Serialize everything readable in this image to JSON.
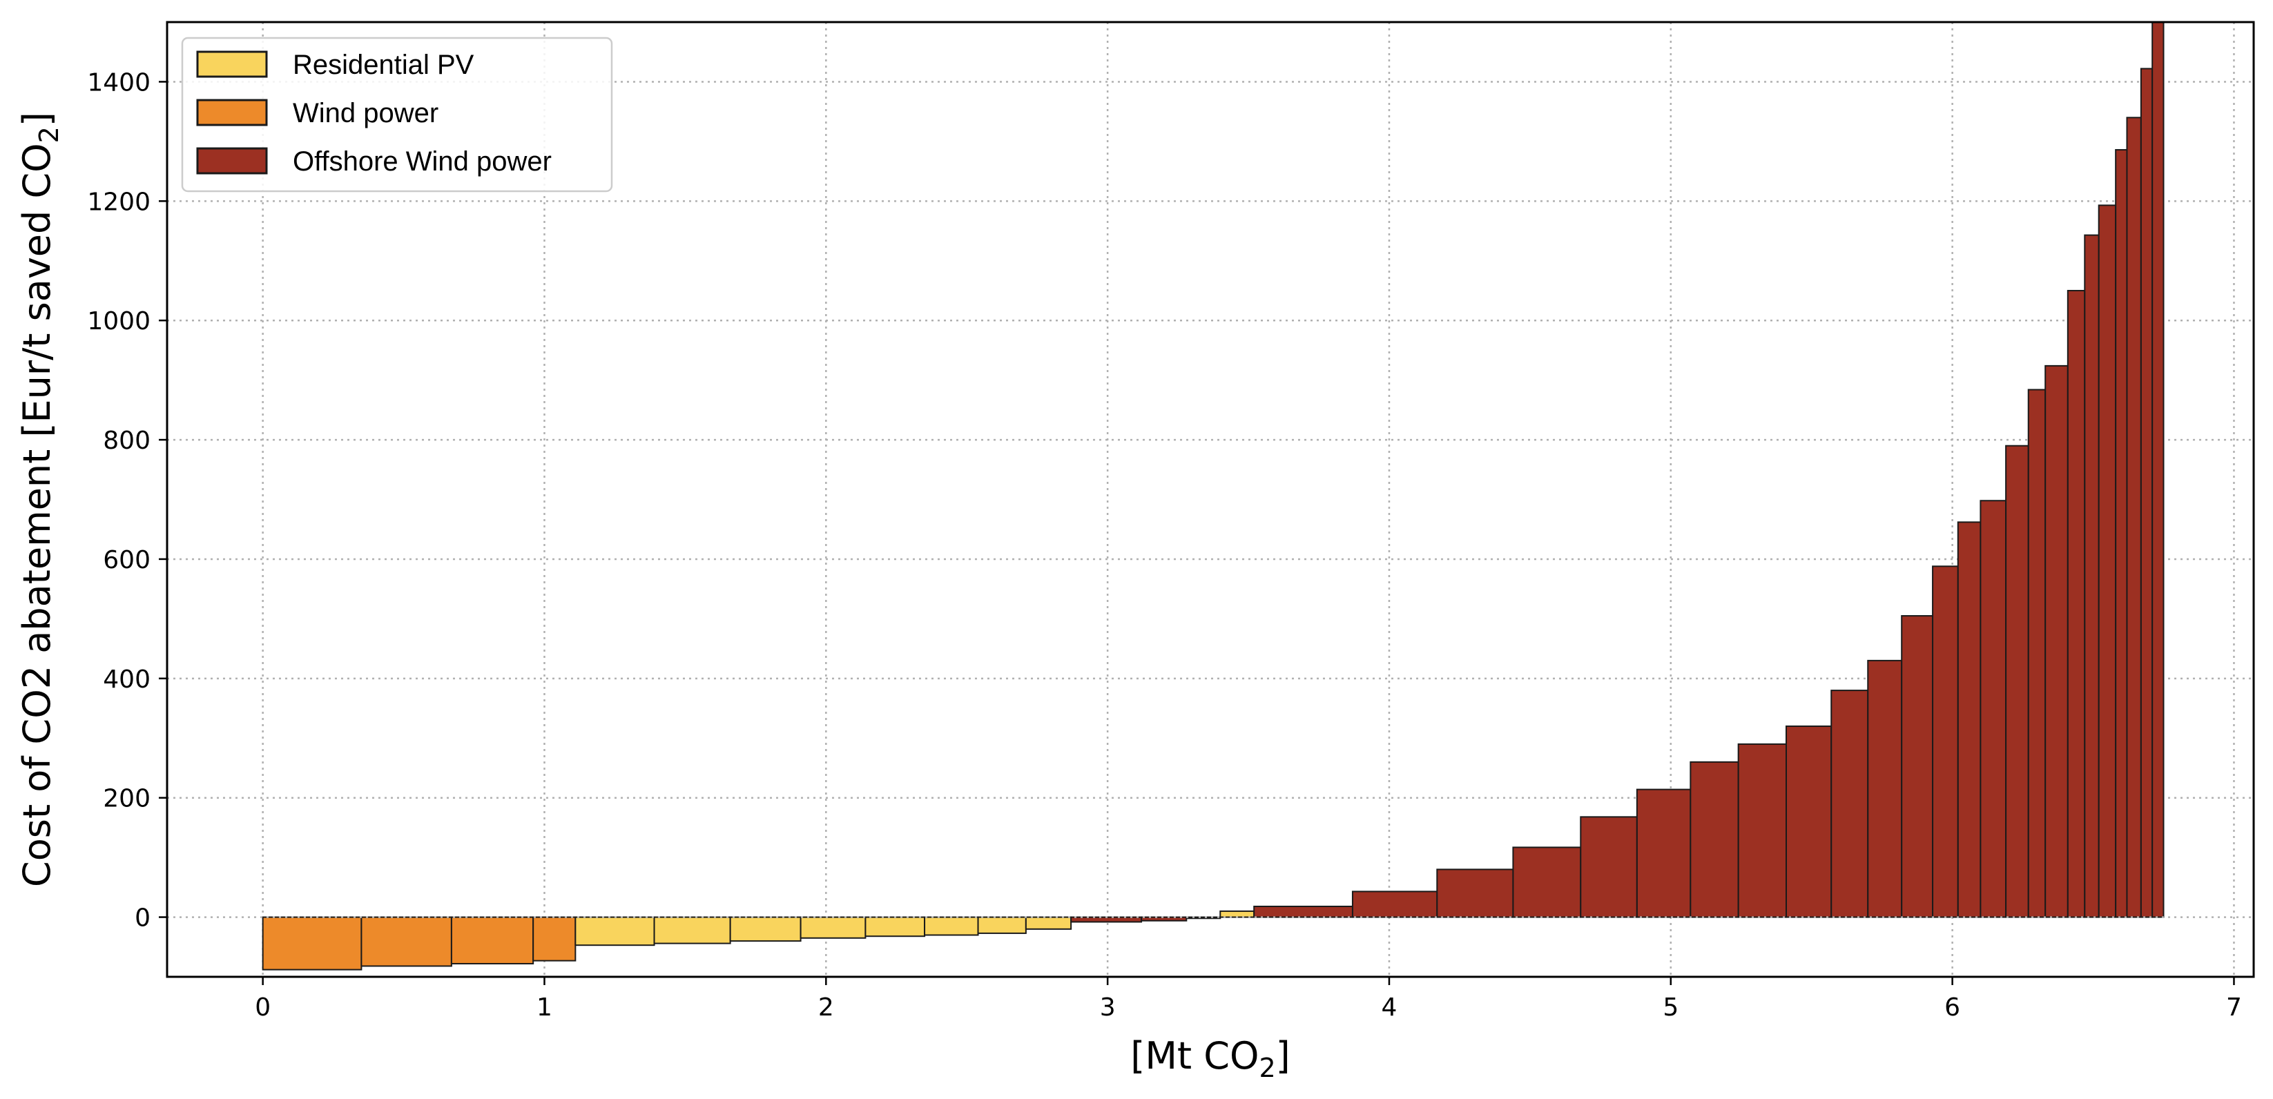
{
  "chart_data": {
    "type": "bar",
    "subtype": "marginal-abatement-cost-curve",
    "title": "",
    "xlabel": {
      "main": "[Mt CO",
      "sub": "2",
      "end": "]"
    },
    "ylabel": {
      "main": "Cost of CO2 abatement [Eur/t saved CO",
      "sub": "2",
      "end": "]"
    },
    "xlim": [
      -0.34,
      7.07
    ],
    "ylim": [
      -100,
      1500
    ],
    "xticks": [
      0,
      1,
      2,
      3,
      4,
      5,
      6,
      7
    ],
    "yticks": [
      0,
      200,
      400,
      600,
      800,
      1000,
      1200,
      1400
    ],
    "grid": true,
    "legend_position": "top-left",
    "colors": {
      "Residential PV": "#f9d45d",
      "Wind power": "#ed8a2a",
      "Offshore Wind power": "#9c3022"
    },
    "series": [
      {
        "name": "Residential PV",
        "color": "#f9d45d"
      },
      {
        "name": "Wind power",
        "color": "#ed8a2a"
      },
      {
        "name": "Offshore Wind power",
        "color": "#9c3022"
      }
    ],
    "bars": [
      {
        "series": "Wind power",
        "x0": 0.0,
        "x1": 0.35,
        "value": -88
      },
      {
        "series": "Wind power",
        "x0": 0.35,
        "x1": 0.67,
        "value": -82
      },
      {
        "series": "Wind power",
        "x0": 0.67,
        "x1": 0.96,
        "value": -78
      },
      {
        "series": "Wind power",
        "x0": 0.96,
        "x1": 1.11,
        "value": -73
      },
      {
        "series": "Residential PV",
        "x0": 1.11,
        "x1": 1.39,
        "value": -47
      },
      {
        "series": "Residential PV",
        "x0": 1.39,
        "x1": 1.66,
        "value": -44
      },
      {
        "series": "Residential PV",
        "x0": 1.66,
        "x1": 1.91,
        "value": -40
      },
      {
        "series": "Residential PV",
        "x0": 1.91,
        "x1": 2.14,
        "value": -35
      },
      {
        "series": "Residential PV",
        "x0": 2.14,
        "x1": 2.35,
        "value": -32
      },
      {
        "series": "Residential PV",
        "x0": 2.35,
        "x1": 2.54,
        "value": -30
      },
      {
        "series": "Residential PV",
        "x0": 2.54,
        "x1": 2.71,
        "value": -27
      },
      {
        "series": "Residential PV",
        "x0": 2.71,
        "x1": 2.87,
        "value": -20
      },
      {
        "series": "Offshore Wind power",
        "x0": 2.87,
        "x1": 3.12,
        "value": -8
      },
      {
        "series": "Offshore Wind power",
        "x0": 3.12,
        "x1": 3.28,
        "value": -6
      },
      {
        "series": "Residential PV",
        "x0": 3.28,
        "x1": 3.4,
        "value": -2
      },
      {
        "series": "Residential PV",
        "x0": 3.4,
        "x1": 3.52,
        "value": 10
      },
      {
        "series": "Offshore Wind power",
        "x0": 3.52,
        "x1": 3.87,
        "value": 18
      },
      {
        "series": "Offshore Wind power",
        "x0": 3.87,
        "x1": 4.17,
        "value": 43
      },
      {
        "series": "Offshore Wind power",
        "x0": 4.17,
        "x1": 4.44,
        "value": 80
      },
      {
        "series": "Offshore Wind power",
        "x0": 4.44,
        "x1": 4.68,
        "value": 117
      },
      {
        "series": "Offshore Wind power",
        "x0": 4.68,
        "x1": 4.88,
        "value": 168
      },
      {
        "series": "Offshore Wind power",
        "x0": 4.88,
        "x1": 5.07,
        "value": 214
      },
      {
        "series": "Offshore Wind power",
        "x0": 5.07,
        "x1": 5.24,
        "value": 260
      },
      {
        "series": "Offshore Wind power",
        "x0": 5.24,
        "x1": 5.41,
        "value": 290
      },
      {
        "series": "Offshore Wind power",
        "x0": 5.41,
        "x1": 5.57,
        "value": 320
      },
      {
        "series": "Offshore Wind power",
        "x0": 5.57,
        "x1": 5.7,
        "value": 380
      },
      {
        "series": "Offshore Wind power",
        "x0": 5.7,
        "x1": 5.82,
        "value": 430
      },
      {
        "series": "Offshore Wind power",
        "x0": 5.82,
        "x1": 5.93,
        "value": 505
      },
      {
        "series": "Offshore Wind power",
        "x0": 5.93,
        "x1": 6.02,
        "value": 588
      },
      {
        "series": "Offshore Wind power",
        "x0": 6.02,
        "x1": 6.1,
        "value": 662
      },
      {
        "series": "Offshore Wind power",
        "x0": 6.1,
        "x1": 6.19,
        "value": 698
      },
      {
        "series": "Offshore Wind power",
        "x0": 6.19,
        "x1": 6.27,
        "value": 790
      },
      {
        "series": "Offshore Wind power",
        "x0": 6.27,
        "x1": 6.33,
        "value": 884
      },
      {
        "series": "Offshore Wind power",
        "x0": 6.33,
        "x1": 6.41,
        "value": 924
      },
      {
        "series": "Offshore Wind power",
        "x0": 6.41,
        "x1": 6.47,
        "value": 1050
      },
      {
        "series": "Offshore Wind power",
        "x0": 6.47,
        "x1": 6.52,
        "value": 1143
      },
      {
        "series": "Offshore Wind power",
        "x0": 6.52,
        "x1": 6.58,
        "value": 1193
      },
      {
        "series": "Offshore Wind power",
        "x0": 6.58,
        "x1": 6.62,
        "value": 1286
      },
      {
        "series": "Offshore Wind power",
        "x0": 6.62,
        "x1": 6.67,
        "value": 1340
      },
      {
        "series": "Offshore Wind power",
        "x0": 6.67,
        "x1": 6.71,
        "value": 1422
      },
      {
        "series": "Offshore Wind power",
        "x0": 6.71,
        "x1": 6.75,
        "value": 1500
      }
    ]
  }
}
